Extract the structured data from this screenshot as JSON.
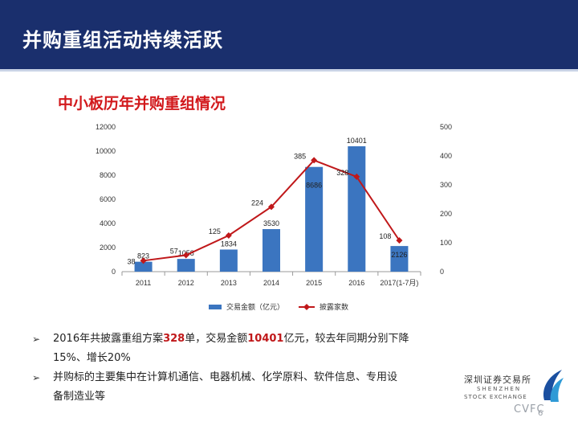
{
  "header": {
    "title": "并购重组活动持续活跃"
  },
  "chart_data": {
    "type": "bar",
    "title": "中小板历年并购重组情况",
    "categories": [
      "2011",
      "2012",
      "2013",
      "2014",
      "2015",
      "2016",
      "2017(1-7月)"
    ],
    "series": [
      {
        "name": "交易金额（亿元）",
        "type": "bar",
        "axis": "left",
        "color": "#3b75c0",
        "values": [
          823,
          1058,
          1834,
          3530,
          8686,
          10401,
          2126
        ]
      },
      {
        "name": "披露家数",
        "type": "line",
        "axis": "right",
        "color": "#c0181a",
        "values": [
          38,
          57,
          125,
          224,
          385,
          328,
          108
        ]
      }
    ],
    "ylim_left": [
      0,
      12000
    ],
    "yticks_left": [
      0,
      2000,
      4000,
      6000,
      8000,
      10000,
      12000
    ],
    "ylim_right": [
      0,
      500
    ],
    "yticks_right": [
      0,
      100,
      200,
      300,
      400,
      500
    ],
    "legend_position": "bottom",
    "grid": false
  },
  "bullets": {
    "b1": {
      "p1": "2016年共披露重组方案",
      "v1": "328",
      "p2": "单，交易金额",
      "v2": "10401",
      "p3": "亿元，较去年同期分别下降",
      "line2": "15%、增长20%"
    },
    "b2": {
      "line1": "并购标的主要集中在计算机通信、电器机械、化学原料、软件信息、专用设",
      "line2": "备制造业等"
    }
  },
  "logo": {
    "name": "深圳证券交易所",
    "en1": "SHENZHEN",
    "en2": "STOCK EXCHANGE"
  },
  "watermark": "CVFC",
  "page_number": "6",
  "colors": {
    "header": "#1a2f6d",
    "title_red": "#d2191c",
    "bar": "#3b75c0",
    "line": "#c0181a"
  }
}
